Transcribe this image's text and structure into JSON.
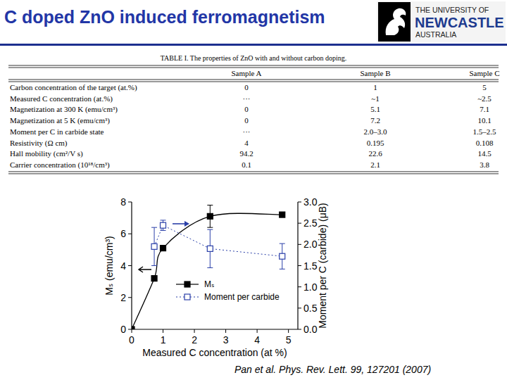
{
  "slide": {
    "title": "C doped ZnO induced ferromagnetism",
    "logo": {
      "lines": [
        "THE UNIVERSITY OF",
        "NEWCASTLE",
        "AUSTRALIA"
      ]
    },
    "citation": "Pan et al. Phys. Rev. Lett. 99, 127201 (2007)"
  },
  "table": {
    "caption": "TABLE I.  The properties of ZnO with and without carbon doping.",
    "header": [
      "Sample A",
      "Sample B",
      "Sample C"
    ],
    "rows": [
      [
        "Carbon concentration of the target (at.%)",
        "0",
        "1",
        "5"
      ],
      [
        "Measured C concentration (at.%)",
        "···",
        "~1",
        "~2.5"
      ],
      [
        "Magnetization at 300 K (emu/cm³)",
        "0",
        "5.1",
        "7.1"
      ],
      [
        "Magnetization at 5 K (emu/cm³)",
        "0",
        "7.2",
        "10.1"
      ],
      [
        "Moment per C in carbide state",
        "···",
        "2.0–3.0",
        "1.5–2.5"
      ],
      [
        "Resistivity (Ω cm)",
        "4",
        "0.195",
        "0.108"
      ],
      [
        "Hall mobility (cm²/V s)",
        "94.2",
        "22.6",
        "14.5"
      ],
      [
        "Carrier concentration (10¹⁸/cm³)",
        "0.1",
        "2.1",
        "3.8"
      ]
    ]
  },
  "chart_data": {
    "type": "scatter",
    "x_label": "Measured C concentration (at %)",
    "y_label": "Mₛ (emu/cm³)",
    "y2_label": "Moment per C (carbide) (μB)",
    "x": [
      0,
      0.72,
      1.0,
      2.5,
      4.8
    ],
    "series": [
      {
        "name": "Mₛ",
        "color": "#000000",
        "marker": "square",
        "line_style": "solid",
        "values": [
          0,
          3.2,
          5.1,
          7.1,
          7.2
        ],
        "errors": [
          null,
          null,
          null,
          0.7,
          null
        ]
      },
      {
        "name": "Moment per carbide",
        "color": "#2a3fa8",
        "marker": "open-square",
        "line_style": "dotted",
        "axis": "y2",
        "values": [
          null,
          1.95,
          2.45,
          1.9,
          1.72
        ],
        "errors": [
          null,
          0.45,
          0.12,
          0.45,
          0.3
        ]
      }
    ],
    "xlim": [
      0,
      5.3
    ],
    "xticks": [
      0,
      1,
      2,
      3,
      4,
      5
    ],
    "ylim": [
      0,
      8
    ],
    "yticks": [
      0,
      2,
      4,
      6,
      8
    ],
    "y2lim": [
      0,
      3
    ],
    "y2ticks": [
      {
        "value": 0,
        "label": "0.0"
      },
      {
        "value": 0.5,
        "label": "0.5"
      },
      {
        "value": 1,
        "label": "1.0"
      },
      {
        "value": 1.5,
        "label": "1.5"
      },
      {
        "value": 2,
        "label": "2.0"
      },
      {
        "value": 2.5,
        "label": "2.5"
      },
      {
        "value": 3,
        "label": "3.0"
      }
    ],
    "grid": false,
    "legend": "lower center"
  }
}
